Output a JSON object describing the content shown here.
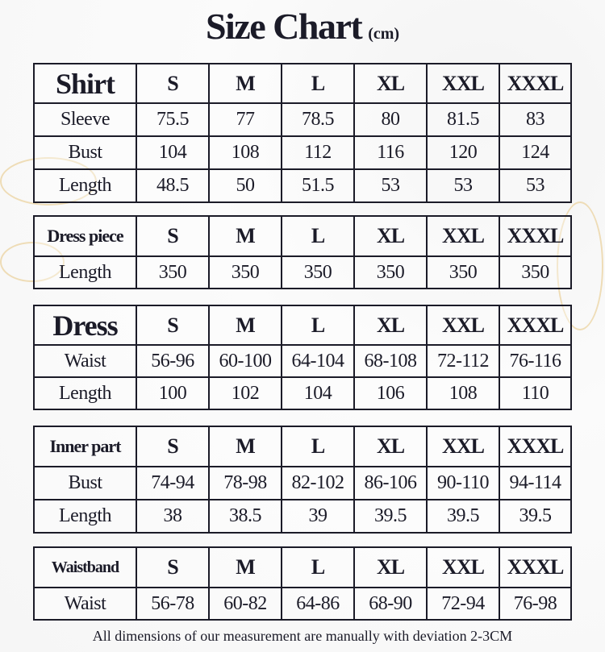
{
  "title": "Size Chart",
  "unit": "(cm)",
  "sizes": [
    "S",
    "M",
    "L",
    "XL",
    "XXL",
    "XXXL"
  ],
  "tables": [
    {
      "name": "Shirt",
      "rows": [
        {
          "label": "Sleeve",
          "values": [
            "75.5",
            "77",
            "78.5",
            "80",
            "81.5",
            "83"
          ]
        },
        {
          "label": "Bust",
          "values": [
            "104",
            "108",
            "112",
            "116",
            "120",
            "124"
          ]
        },
        {
          "label": "Length",
          "values": [
            "48.5",
            "50",
            "51.5",
            "53",
            "53",
            "53"
          ]
        }
      ]
    },
    {
      "name": "Dress piece",
      "rows": [
        {
          "label": "Length",
          "values": [
            "350",
            "350",
            "350",
            "350",
            "350",
            "350"
          ]
        }
      ]
    },
    {
      "name": "Dress",
      "rows": [
        {
          "label": "Waist",
          "values": [
            "56-96",
            "60-100",
            "64-104",
            "68-108",
            "72-112",
            "76-116"
          ]
        },
        {
          "label": "Length",
          "values": [
            "100",
            "102",
            "104",
            "106",
            "108",
            "110"
          ]
        }
      ]
    },
    {
      "name": "Inner part",
      "rows": [
        {
          "label": "Bust",
          "values": [
            "74-94",
            "78-98",
            "82-102",
            "86-106",
            "90-110",
            "94-114"
          ]
        },
        {
          "label": "Length",
          "values": [
            "38",
            "38.5",
            "39",
            "39.5",
            "39.5",
            "39.5"
          ]
        }
      ]
    },
    {
      "name": "Waistband",
      "rows": [
        {
          "label": "Waist",
          "values": [
            "56-78",
            "60-82",
            "64-86",
            "68-90",
            "72-94",
            "76-98"
          ]
        }
      ]
    }
  ],
  "footer": "All dimensions of our measurement are manually with deviation 2-3CM",
  "colors": {
    "border": "#1b1b28",
    "text": "#1b1b28",
    "accent_swirl": "#e8c98a"
  }
}
